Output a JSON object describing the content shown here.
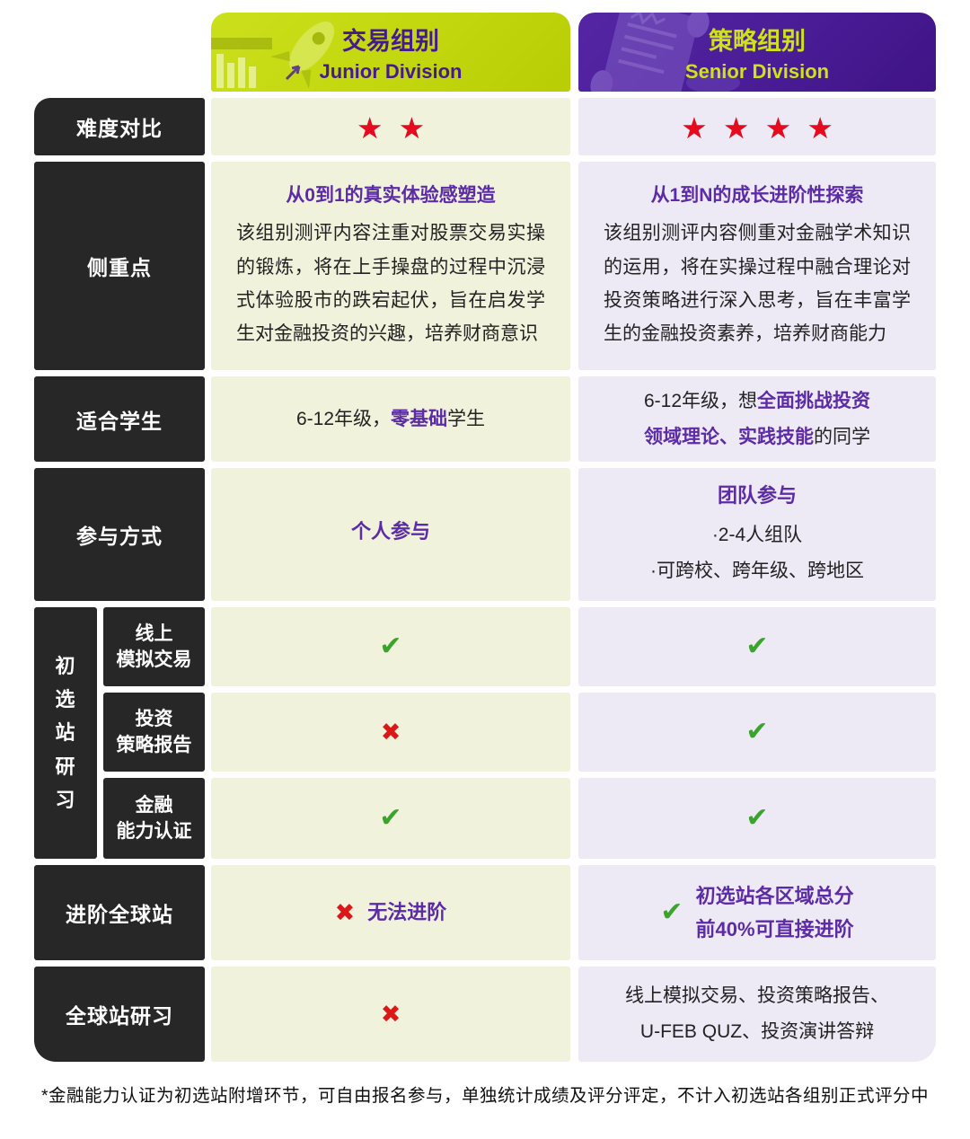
{
  "header": {
    "junior": {
      "title_zh": "交易组别",
      "title_en": "Junior Division"
    },
    "senior": {
      "title_zh": "策略组别",
      "title_en": "Senior Division"
    }
  },
  "rows": {
    "difficulty": {
      "label": "难度对比",
      "junior_stars": 2,
      "senior_stars": 4
    },
    "focus": {
      "label": "侧重点",
      "junior": {
        "title": "从0到1的真实体验感塑造",
        "body": "该组别测评内容注重对股票交易实操的锻炼，将在上手操盘的过程中沉浸式体验股市的跌宕起伏，旨在启发学生对金融投资的兴趣，培养财商意识"
      },
      "senior": {
        "title": "从1到N的成长进阶性探索",
        "body": "该组别测评内容侧重对金融学术知识的运用，将在实操过程中融合理论对投资策略进行深入思考，旨在丰富学生的金融投资素养，培养财商能力"
      }
    },
    "students": {
      "label": "适合学生",
      "junior_segments": [
        {
          "t": "6-12年级，",
          "em": false
        },
        {
          "t": "零基础",
          "em": true
        },
        {
          "t": "学生",
          "em": false
        }
      ],
      "senior_segments": [
        {
          "t": "6-12年级，想",
          "em": false
        },
        {
          "t": "全面挑战投资\n领域理论、实践技能",
          "em": true
        },
        {
          "t": "的同学",
          "em": false
        }
      ]
    },
    "participation": {
      "label": "参与方式",
      "junior_text": "个人参与",
      "senior": {
        "title": "团队参与",
        "lines": [
          "·2-4人组队",
          "·可跨校、跨年级、跨地区"
        ]
      }
    },
    "preliminary": {
      "group_label": "初\n选\n站\n研\n习",
      "subrows": [
        {
          "label": "线上\n模拟交易",
          "junior": "check",
          "senior": "check"
        },
        {
          "label": "投资\n策略报告",
          "junior": "cross",
          "senior": "check"
        },
        {
          "label": "金融\n能力认证",
          "junior": "check",
          "senior": "check"
        }
      ]
    },
    "advance": {
      "label": "进阶全球站",
      "junior": {
        "mark": "cross",
        "text": "无法进阶"
      },
      "senior": {
        "mark": "check",
        "text": "初选站各区域总分\n前40%可直接进阶"
      }
    },
    "global": {
      "label": "全球站研习",
      "junior": {
        "mark": "cross"
      },
      "senior": {
        "text": "线上模拟交易、投资策略报告、\nU-FEB QUZ、投资演讲答辩"
      }
    }
  },
  "footnote": "*金融能力认证为初选站附增环节，可自由报名参与，单独统计成绩及评分评定，不计入初选站各组别正式评分中"
}
